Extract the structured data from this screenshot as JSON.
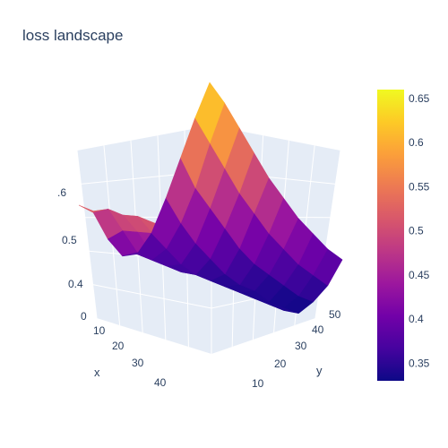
{
  "chart_data": {
    "type": "surface",
    "title": "loss landscape",
    "xlabel": "x",
    "ylabel": "y",
    "zlabel": "",
    "x_range": [
      0,
      50
    ],
    "y_range": [
      0,
      50
    ],
    "z_range": [
      0.33,
      0.66
    ],
    "x_ticks": [
      "0",
      "10",
      "20",
      "30",
      "40"
    ],
    "y_ticks": [
      "10",
      "20",
      "30",
      "40",
      "50"
    ],
    "z_ticks": [
      "0.4",
      "0.5",
      ".6"
    ],
    "z_grid": [
      [
        0.53,
        0.5,
        0.43,
        0.38,
        0.37,
        0.4,
        0.46,
        0.53,
        0.6,
        0.66
      ],
      [
        0.53,
        0.52,
        0.46,
        0.4,
        0.37,
        0.38,
        0.42,
        0.48,
        0.56,
        0.63
      ],
      [
        0.54,
        0.52,
        0.47,
        0.41,
        0.37,
        0.36,
        0.39,
        0.45,
        0.52,
        0.59
      ],
      [
        0.54,
        0.53,
        0.48,
        0.42,
        0.37,
        0.35,
        0.37,
        0.42,
        0.48,
        0.55
      ],
      [
        0.55,
        0.53,
        0.49,
        0.43,
        0.38,
        0.35,
        0.35,
        0.39,
        0.45,
        0.51
      ],
      [
        0.55,
        0.53,
        0.49,
        0.44,
        0.38,
        0.35,
        0.34,
        0.37,
        0.42,
        0.48
      ],
      [
        0.55,
        0.54,
        0.5,
        0.44,
        0.39,
        0.35,
        0.34,
        0.36,
        0.4,
        0.45
      ],
      [
        0.55,
        0.54,
        0.5,
        0.45,
        0.39,
        0.35,
        0.33,
        0.35,
        0.38,
        0.43
      ],
      [
        0.55,
        0.54,
        0.5,
        0.45,
        0.39,
        0.35,
        0.33,
        0.34,
        0.37,
        0.41
      ],
      [
        0.55,
        0.54,
        0.51,
        0.45,
        0.4,
        0.35,
        0.33,
        0.34,
        0.36,
        0.4
      ]
    ],
    "colorbar": {
      "ticks": [
        "0.35",
        "0.4",
        "0.45",
        "0.5",
        "0.55",
        "0.6",
        "0.65"
      ],
      "tick_values": [
        0.35,
        0.4,
        0.45,
        0.5,
        0.55,
        0.6,
        0.65
      ],
      "range": [
        0.33,
        0.66
      ],
      "colorscale": [
        "#0d0887",
        "#46039f",
        "#7201a8",
        "#9c179e",
        "#bd3786",
        "#d8576b",
        "#ed7953",
        "#fb9f3a",
        "#fdca26",
        "#f0f921"
      ]
    },
    "scene_background": "#e5ecf6",
    "gridline_color": "#ffffff"
  }
}
